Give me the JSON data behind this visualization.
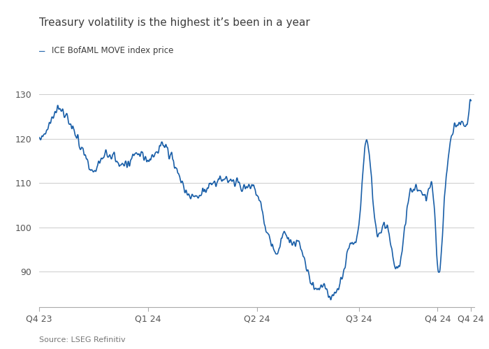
{
  "title": "Treasury volatility is the highest it’s been in a year",
  "legend_label": "ICE BofAML MOVE index price",
  "source": "Source: LSEG Refinitiv",
  "line_color": "#1a5fa8",
  "ylim": [
    82,
    134
  ],
  "yticks": [
    90,
    100,
    110,
    120,
    130
  ],
  "xtick_labels": [
    "Q4 23",
    "Q1 24",
    "Q2 24",
    "Q3 24",
    "Q4 24",
    "Q4 24"
  ],
  "xtick_positions": [
    0,
    65,
    130,
    191,
    238,
    258
  ],
  "xlim": [
    0,
    260
  ],
  "title_color": "#3d3d3d",
  "axis_color": "#aaaaaa",
  "grid_color": "#cccccc",
  "key_x": [
    0,
    4,
    10,
    18,
    25,
    32,
    38,
    45,
    52,
    58,
    65,
    72,
    78,
    85,
    92,
    98,
    105,
    112,
    118,
    124,
    130,
    135,
    138,
    142,
    146,
    150,
    154,
    158,
    162,
    166,
    170,
    175,
    178,
    182,
    186,
    191,
    196,
    200,
    204,
    208,
    212,
    216,
    220,
    224,
    228,
    232,
    236,
    238,
    242,
    246,
    250,
    254,
    258
  ],
  "key_y": [
    120,
    122,
    126,
    124,
    118,
    113,
    116,
    116,
    114,
    117,
    115,
    118,
    117,
    110,
    107,
    108,
    110,
    111,
    110,
    109,
    108,
    100,
    97,
    94,
    99,
    97,
    97,
    93,
    88,
    86,
    87,
    84,
    86,
    90,
    96,
    100,
    120,
    103,
    99,
    100,
    92,
    93,
    105,
    109,
    108,
    107,
    105,
    91,
    105,
    120,
    124,
    123,
    130
  ],
  "noise_seed": 77,
  "noise_scale": 1.2,
  "smooth_sigma": 1.8
}
